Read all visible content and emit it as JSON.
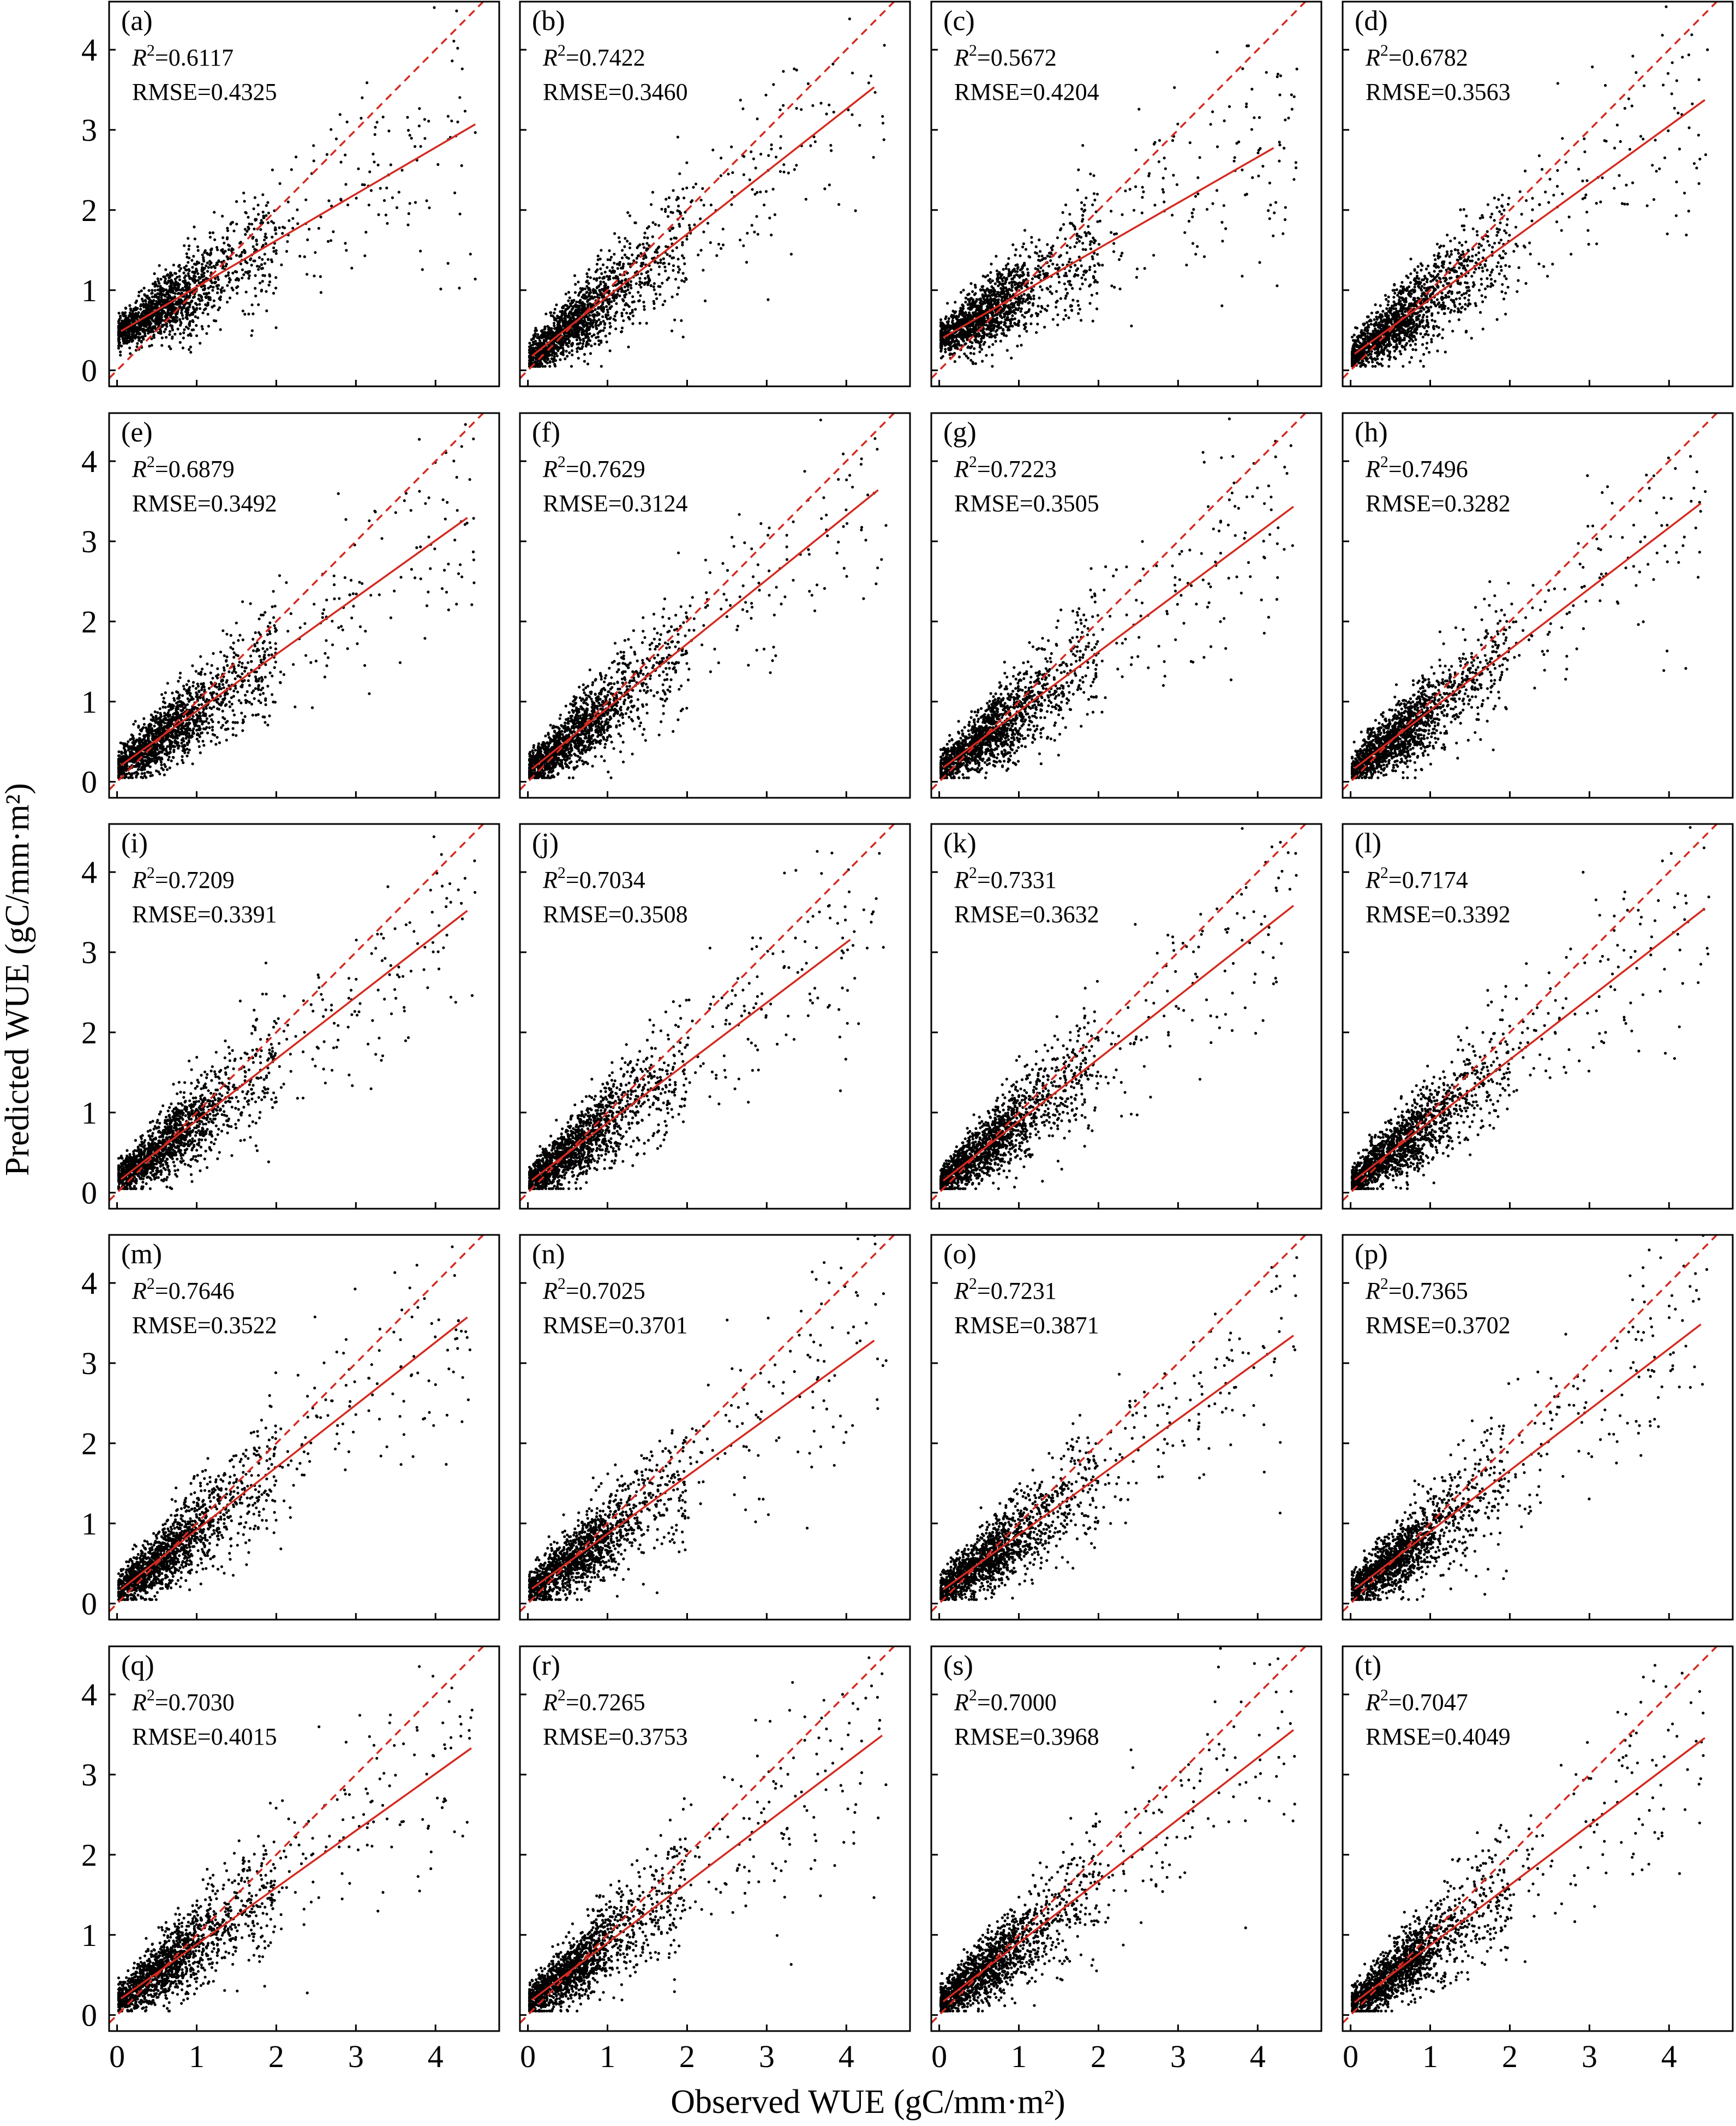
{
  "figure": {
    "xlabel": "Observed WUE (gC/mm·m²)",
    "ylabel": "Predicted WUE (gC/mm·m²)",
    "x_ticks": [
      "0",
      "1",
      "2",
      "3",
      "4"
    ],
    "y_ticks": [
      "0",
      "1",
      "2",
      "3",
      "4"
    ],
    "r2_prefix": "R",
    "r2_sup": "2",
    "rmse_prefix": "RMSE="
  },
  "colors": {
    "points": "#000000",
    "fit_line": "#d42a20",
    "reference_line": "#d42a20"
  },
  "chart_data": [
    {
      "type": "scatter",
      "label": "(a)",
      "r2": "0.6117",
      "rmse": "0.4325",
      "fit": {
        "slope": 0.58,
        "intercept": 0.46,
        "x_end": 4.5
      },
      "xlim": [
        -0.1,
        4.8
      ],
      "ylim": [
        -0.2,
        4.6
      ],
      "reference": "1:1"
    },
    {
      "type": "scatter",
      "label": "(b)",
      "r2": "0.7422",
      "rmse": "0.3460",
      "fit": {
        "slope": 0.78,
        "intercept": 0.14,
        "x_end": 4.35
      },
      "xlim": [
        -0.1,
        4.8
      ],
      "ylim": [
        -0.2,
        4.6
      ],
      "reference": "1:1"
    },
    {
      "type": "scatter",
      "label": "(c)",
      "r2": "0.5672",
      "rmse": "0.4204",
      "fit": {
        "slope": 0.57,
        "intercept": 0.38,
        "x_end": 4.2
      },
      "xlim": [
        -0.1,
        4.8
      ],
      "ylim": [
        -0.2,
        4.6
      ],
      "reference": "1:1"
    },
    {
      "type": "scatter",
      "label": "(d)",
      "r2": "0.6782",
      "rmse": "0.3563",
      "fit": {
        "slope": 0.72,
        "intercept": 0.17,
        "x_end": 4.45
      },
      "xlim": [
        -0.1,
        4.8
      ],
      "ylim": [
        -0.2,
        4.6
      ],
      "reference": "1:1"
    },
    {
      "type": "scatter",
      "label": "(e)",
      "r2": "0.6879",
      "rmse": "0.3492",
      "fit": {
        "slope": 0.71,
        "intercept": 0.17,
        "x_end": 4.4
      },
      "xlim": [
        -0.1,
        4.8
      ],
      "ylim": [
        -0.2,
        4.6
      ],
      "reference": "1:1"
    },
    {
      "type": "scatter",
      "label": "(f)",
      "r2": "0.7629",
      "rmse": "0.3124",
      "fit": {
        "slope": 0.8,
        "intercept": 0.12,
        "x_end": 4.4
      },
      "xlim": [
        -0.1,
        4.8
      ],
      "ylim": [
        -0.2,
        4.6
      ],
      "reference": "1:1"
    },
    {
      "type": "scatter",
      "label": "(g)",
      "r2": "0.7223",
      "rmse": "0.3505",
      "fit": {
        "slope": 0.74,
        "intercept": 0.14,
        "x_end": 4.45
      },
      "xlim": [
        -0.1,
        4.8
      ],
      "ylim": [
        -0.2,
        4.6
      ],
      "reference": "1:1"
    },
    {
      "type": "scatter",
      "label": "(h)",
      "r2": "0.7496",
      "rmse": "0.3282",
      "fit": {
        "slope": 0.76,
        "intercept": 0.13,
        "x_end": 4.4
      },
      "xlim": [
        -0.1,
        4.8
      ],
      "ylim": [
        -0.2,
        4.6
      ],
      "reference": "1:1"
    },
    {
      "type": "scatter",
      "label": "(i)",
      "r2": "0.7209",
      "rmse": "0.3391",
      "fit": {
        "slope": 0.77,
        "intercept": 0.13,
        "x_end": 4.4
      },
      "xlim": [
        -0.1,
        4.8
      ],
      "ylim": [
        -0.2,
        4.6
      ],
      "reference": "1:1"
    },
    {
      "type": "scatter",
      "label": "(j)",
      "r2": "0.7034",
      "rmse": "0.3508",
      "fit": {
        "slope": 0.75,
        "intercept": 0.12,
        "x_end": 4.05
      },
      "xlim": [
        -0.1,
        4.8
      ],
      "ylim": [
        -0.2,
        4.6
      ],
      "reference": "1:1"
    },
    {
      "type": "scatter",
      "label": "(k)",
      "r2": "0.7331",
      "rmse": "0.3632",
      "fit": {
        "slope": 0.78,
        "intercept": 0.11,
        "x_end": 4.45
      },
      "xlim": [
        -0.1,
        4.8
      ],
      "ylim": [
        -0.2,
        4.6
      ],
      "reference": "1:1"
    },
    {
      "type": "scatter",
      "label": "(l)",
      "r2": "0.7174",
      "rmse": "0.3392",
      "fit": {
        "slope": 0.77,
        "intercept": 0.12,
        "x_end": 4.45
      },
      "xlim": [
        -0.1,
        4.8
      ],
      "ylim": [
        -0.2,
        4.6
      ],
      "reference": "1:1"
    },
    {
      "type": "scatter",
      "label": "(m)",
      "r2": "0.7646",
      "rmse": "0.3522",
      "fit": {
        "slope": 0.78,
        "intercept": 0.14,
        "x_end": 4.4
      },
      "xlim": [
        -0.1,
        4.8
      ],
      "ylim": [
        -0.2,
        4.6
      ],
      "reference": "1:1"
    },
    {
      "type": "scatter",
      "label": "(n)",
      "r2": "0.7025",
      "rmse": "0.3701",
      "fit": {
        "slope": 0.72,
        "intercept": 0.15,
        "x_end": 4.35
      },
      "xlim": [
        -0.1,
        4.8
      ],
      "ylim": [
        -0.2,
        4.6
      ],
      "reference": "1:1"
    },
    {
      "type": "scatter",
      "label": "(o)",
      "r2": "0.7231",
      "rmse": "0.3871",
      "fit": {
        "slope": 0.72,
        "intercept": 0.14,
        "x_end": 4.45
      },
      "xlim": [
        -0.1,
        4.8
      ],
      "ylim": [
        -0.2,
        4.6
      ],
      "reference": "1:1"
    },
    {
      "type": "scatter",
      "label": "(p)",
      "r2": "0.7365",
      "rmse": "0.3702",
      "fit": {
        "slope": 0.76,
        "intercept": 0.14,
        "x_end": 4.4
      },
      "xlim": [
        -0.1,
        4.8
      ],
      "ylim": [
        -0.2,
        4.6
      ],
      "reference": "1:1"
    },
    {
      "type": "scatter",
      "label": "(q)",
      "r2": "0.7030",
      "rmse": "0.4015",
      "fit": {
        "slope": 0.71,
        "intercept": 0.17,
        "x_end": 4.45
      },
      "xlim": [
        -0.1,
        4.8
      ],
      "ylim": [
        -0.2,
        4.6
      ],
      "reference": "1:1"
    },
    {
      "type": "scatter",
      "label": "(r)",
      "r2": "0.7265",
      "rmse": "0.3753",
      "fit": {
        "slope": 0.75,
        "intercept": 0.15,
        "x_end": 4.45
      },
      "xlim": [
        -0.1,
        4.8
      ],
      "ylim": [
        -0.2,
        4.6
      ],
      "reference": "1:1"
    },
    {
      "type": "scatter",
      "label": "(s)",
      "r2": "0.7000",
      "rmse": "0.3968",
      "fit": {
        "slope": 0.77,
        "intercept": 0.13,
        "x_end": 4.45
      },
      "xlim": [
        -0.1,
        4.8
      ],
      "ylim": [
        -0.2,
        4.6
      ],
      "reference": "1:1"
    },
    {
      "type": "scatter",
      "label": "(t)",
      "r2": "0.7047",
      "rmse": "0.4049",
      "fit": {
        "slope": 0.75,
        "intercept": 0.12,
        "x_end": 4.45
      },
      "xlim": [
        -0.1,
        4.8
      ],
      "ylim": [
        -0.2,
        4.6
      ],
      "reference": "1:1"
    }
  ]
}
